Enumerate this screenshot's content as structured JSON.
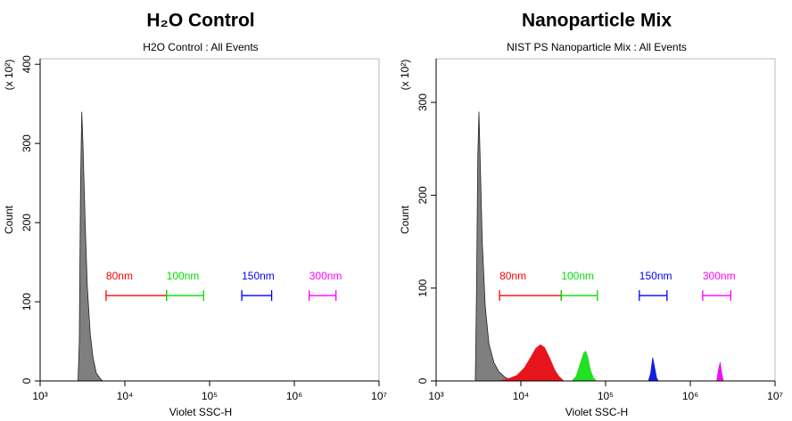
{
  "chart_data": [
    {
      "type": "area",
      "title": "H₂O Control",
      "subtitle": "H2O Control : All Events",
      "xlabel": "Violet SSC-H",
      "ylabel": "Count",
      "y_multiplier": "(x 10²)",
      "log_x": true,
      "xlim": [
        1000,
        10000000
      ],
      "xticks": [
        {
          "value": 1000,
          "label": "10³"
        },
        {
          "value": 10000,
          "label": "10⁴"
        },
        {
          "value": 100000,
          "label": "10⁵"
        },
        {
          "value": 1000000,
          "label": "10⁶"
        },
        {
          "value": 10000000,
          "label": "10⁷"
        }
      ],
      "ylim": [
        0,
        407
      ],
      "yticks": [
        0,
        100,
        200,
        300,
        400
      ],
      "series": [
        {
          "color": "#7f7f7f",
          "x": [
            2800,
            2900,
            3000,
            3100,
            3200,
            3400,
            3600,
            3900,
            4200,
            4600,
            5200,
            5500
          ],
          "values": [
            0,
            50,
            250,
            340,
            300,
            200,
            120,
            60,
            30,
            10,
            2,
            0
          ]
        }
      ],
      "gates": [
        {
          "label": "80nm",
          "color": "#ff0000",
          "range": [
            6000,
            31000
          ]
        },
        {
          "label": "100nm",
          "color": "#00dd00",
          "range": [
            31000,
            85000
          ]
        },
        {
          "label": "150nm",
          "color": "#0000ff",
          "range": [
            240000,
            540000
          ]
        },
        {
          "label": "300nm",
          "color": "#ff00ff",
          "range": [
            1500000,
            3100000
          ]
        }
      ]
    },
    {
      "type": "area",
      "title": "Nanoparticle Mix",
      "subtitle": "NIST PS Nanoparticle Mix : All Events",
      "xlabel": "Violet SSC-H",
      "ylabel": "Count",
      "y_multiplier": "(x 10²)",
      "log_x": true,
      "xlim": [
        1000,
        10000000
      ],
      "xticks": [
        {
          "value": 1000,
          "label": "10³"
        },
        {
          "value": 10000,
          "label": "10⁴"
        },
        {
          "value": 100000,
          "label": "10⁵"
        },
        {
          "value": 1000000,
          "label": "10⁶"
        },
        {
          "value": 10000000,
          "label": "10⁷"
        }
      ],
      "ylim": [
        0,
        347
      ],
      "yticks": [
        0,
        100,
        200,
        300
      ],
      "series": [
        {
          "color": "#7f7f7f",
          "x": [
            2900,
            3000,
            3100,
            3200,
            3350,
            3500,
            3800,
            4200,
            4800,
            5500,
            6500,
            8000
          ],
          "values": [
            0,
            100,
            240,
            290,
            220,
            150,
            80,
            40,
            20,
            10,
            4,
            0
          ]
        },
        {
          "color": "#e8141b",
          "x": [
            5600,
            7000,
            9000,
            11000,
            13000,
            15000,
            17000,
            19000,
            22000,
            25000,
            28000,
            32000
          ],
          "values": [
            0,
            2,
            6,
            14,
            25,
            35,
            39,
            36,
            24,
            12,
            5,
            0
          ]
        },
        {
          "color": "#22e022",
          "x": [
            40000,
            45000,
            50000,
            55000,
            58000,
            62000,
            66000,
            72000,
            78000
          ],
          "values": [
            0,
            5,
            18,
            30,
            32,
            25,
            12,
            3,
            0
          ]
        },
        {
          "color": "#1020e0",
          "x": [
            320000,
            340000,
            360000,
            380000,
            400000,
            420000
          ],
          "values": [
            0,
            8,
            25,
            14,
            3,
            0
          ]
        },
        {
          "color": "#ee10ee",
          "x": [
            2050000,
            2150000,
            2250000,
            2350000,
            2450000
          ],
          "values": [
            0,
            12,
            20,
            8,
            0
          ]
        }
      ],
      "gates": [
        {
          "label": "80nm",
          "color": "#ff0000",
          "range": [
            5600,
            30000
          ]
        },
        {
          "label": "100nm",
          "color": "#00dd00",
          "range": [
            30000,
            80000
          ]
        },
        {
          "label": "150nm",
          "color": "#0000ff",
          "range": [
            250000,
            530000
          ]
        },
        {
          "label": "300nm",
          "color": "#ff00ff",
          "range": [
            1400000,
            3000000
          ]
        }
      ]
    }
  ]
}
